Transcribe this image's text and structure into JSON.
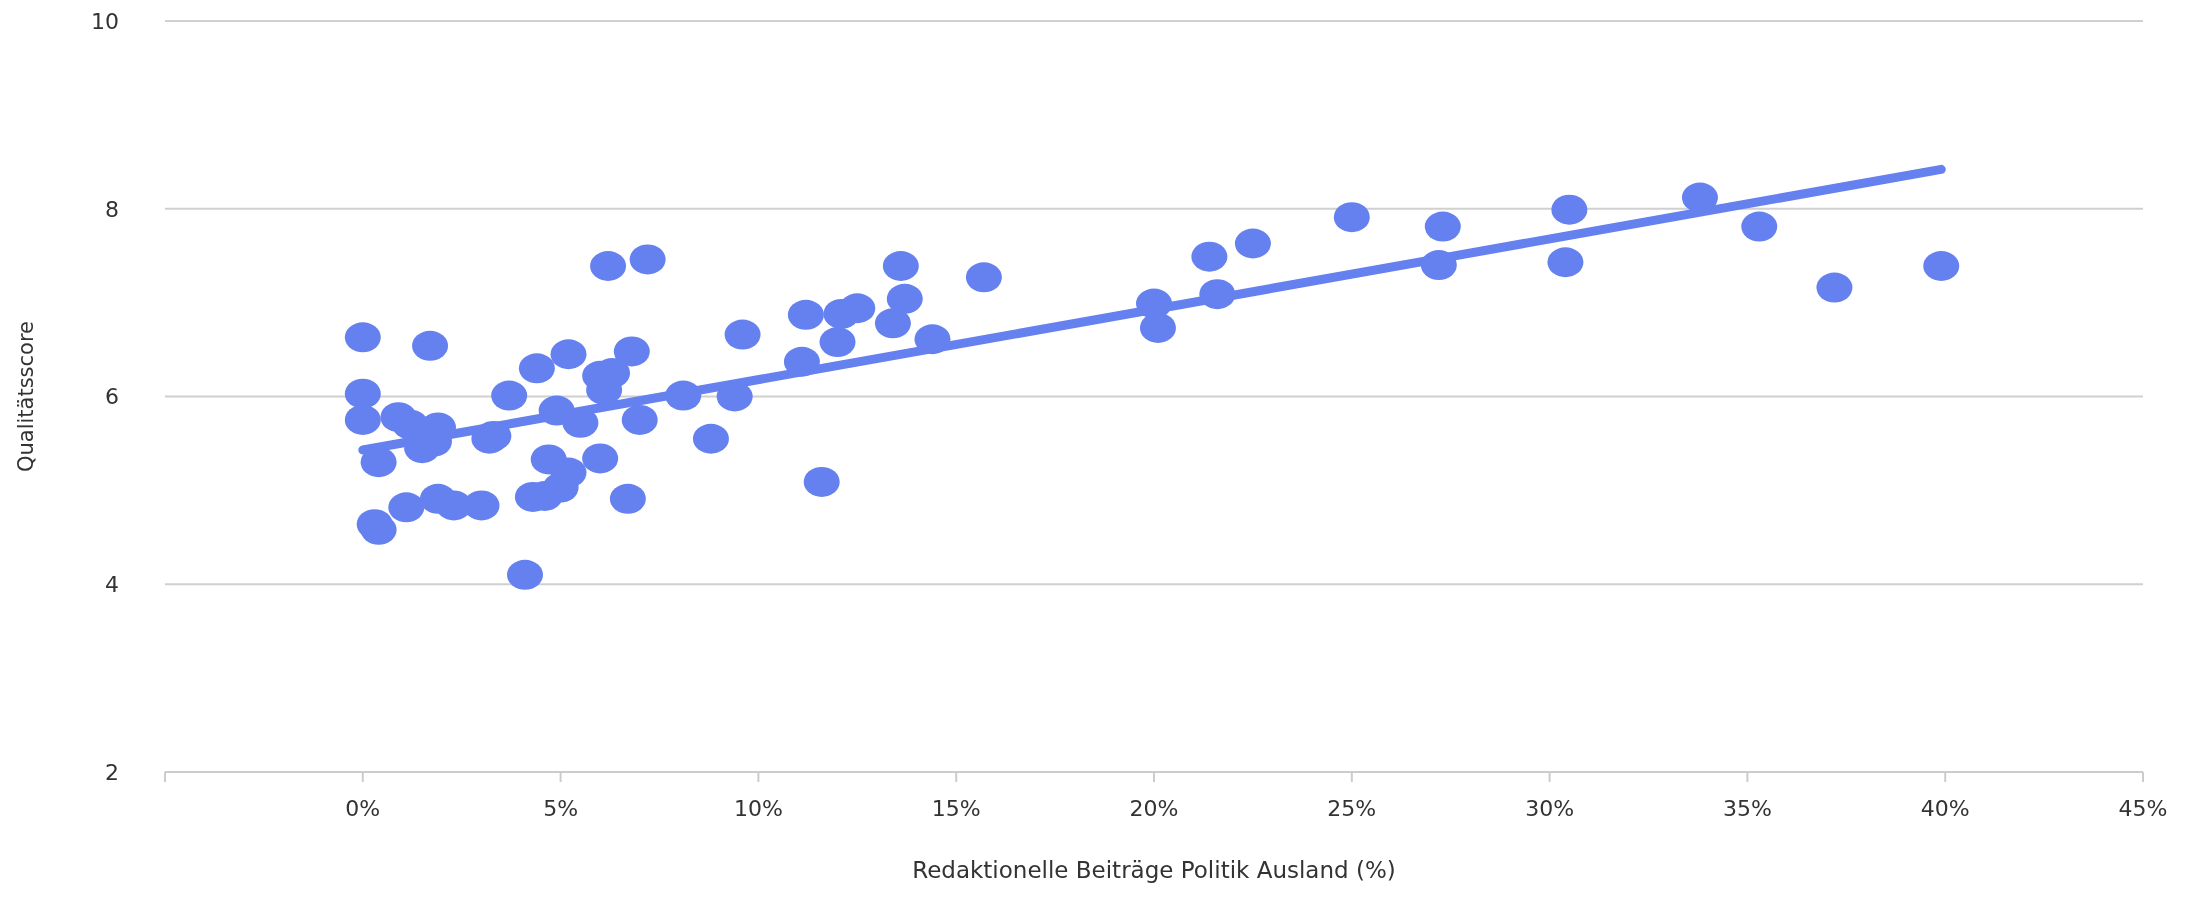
{
  "chart_data": {
    "type": "scatter",
    "xlabel": "Redaktionelle Beiträge Politik Ausland (%)",
    "ylabel": "Qualitätsscore",
    "xlim": [
      -5,
      45
    ],
    "xticks": [
      {
        "value": -5,
        "label": null
      },
      {
        "value": 0,
        "label": "0%"
      },
      {
        "value": 5,
        "label": "5%"
      },
      {
        "value": 10,
        "label": "10%"
      },
      {
        "value": 15,
        "label": "15%"
      },
      {
        "value": 20,
        "label": "20%"
      },
      {
        "value": 25,
        "label": "25%"
      },
      {
        "value": 30,
        "label": "30%"
      },
      {
        "value": 35,
        "label": "35%"
      },
      {
        "value": 40,
        "label": "40%"
      },
      {
        "value": 45,
        "label": "45%"
      }
    ],
    "ylim": [
      2,
      10
    ],
    "yticks": [
      2,
      4,
      6,
      8,
      10
    ],
    "grid": "y",
    "series": [
      {
        "marker": "circle",
        "color": "#6580ef",
        "x": [
          0,
          0,
          0,
          0.4,
          0.3,
          0.4,
          0.9,
          1.2,
          1.5,
          1.9,
          1.8,
          1.7,
          1.1,
          1.9,
          2.3,
          3.0,
          3.2,
          3.3,
          3.7,
          4.1,
          4.4,
          4.3,
          4.6,
          4.7,
          4.9,
          5.0,
          5.2,
          5.2,
          5.5,
          6.0,
          6.0,
          6.3,
          6.1,
          6.2,
          6.7,
          6.8,
          7.0,
          7.2,
          8.1,
          8.8,
          9.4,
          9.6,
          11.1,
          11.2,
          11.6,
          12.0,
          12.1,
          12.5,
          13.4,
          13.6,
          13.7,
          14.4,
          15.7,
          20.0,
          20.1,
          21.4,
          21.6,
          22.5,
          25.0,
          27.2,
          27.3,
          30.4,
          30.5,
          33.8,
          35.3,
          37.2,
          39.9
        ],
        "values": [
          6.63,
          6.03,
          5.75,
          5.3,
          4.64,
          4.58,
          5.78,
          5.7,
          5.45,
          5.67,
          5.52,
          6.54,
          4.82,
          4.91,
          4.84,
          4.84,
          5.55,
          5.58,
          6.01,
          4.1,
          6.3,
          4.93,
          4.94,
          5.33,
          5.85,
          5.03,
          5.19,
          6.45,
          5.72,
          5.34,
          6.22,
          6.25,
          6.07,
          7.39,
          4.91,
          6.48,
          5.75,
          7.46,
          6.01,
          5.55,
          6.0,
          6.66,
          6.37,
          6.87,
          5.09,
          6.58,
          6.88,
          6.94,
          6.78,
          7.39,
          7.04,
          6.61,
          7.27,
          6.99,
          6.73,
          7.49,
          7.09,
          7.63,
          7.91,
          7.4,
          7.81,
          7.43,
          7.99,
          8.12,
          7.81,
          7.16,
          7.39
        ]
      },
      {
        "type": "line",
        "marker": "none",
        "color": "#6580ef",
        "x": [
          0,
          39.9
        ],
        "values": [
          5.43,
          8.42
        ]
      }
    ]
  }
}
